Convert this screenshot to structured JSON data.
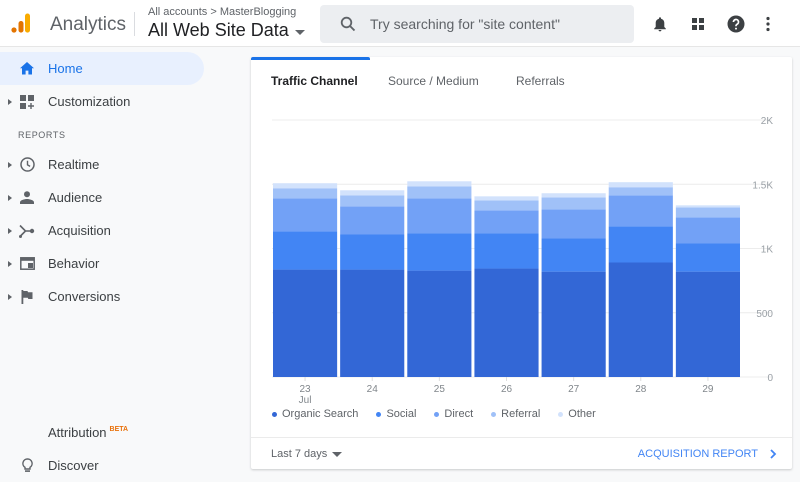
{
  "header": {
    "app_name": "Analytics",
    "breadcrumb": "All accounts > MasterBlogging",
    "property": "All Web Site Data",
    "search_placeholder": "Try searching for \"site content\""
  },
  "sidebar": {
    "home": "Home",
    "customization": "Customization",
    "reports_label": "REPORTS",
    "realtime": "Realtime",
    "audience": "Audience",
    "acquisition": "Acquisition",
    "behavior": "Behavior",
    "conversions": "Conversions",
    "attribution": "Attribution",
    "attribution_badge": "BETA",
    "discover": "Discover"
  },
  "card": {
    "tabs": [
      "Traffic Channel",
      "Source / Medium",
      "Referrals"
    ],
    "date_range": "Last 7 days",
    "report_link": "ACQUISITION REPORT"
  },
  "colors": {
    "accent": "#1a73e8",
    "organic": "#3367d6",
    "social": "#4285f4",
    "direct": "#72a1f6",
    "referral": "#a0c1f8",
    "other": "#d2e2fc",
    "logo_dark": "#e37400",
    "logo_light": "#f9ab00"
  },
  "chart_data": {
    "type": "bar",
    "stacked": true,
    "title": "Traffic Channel",
    "xlabel": "",
    "ylabel": "",
    "categories": [
      "23",
      "24",
      "25",
      "26",
      "27",
      "28",
      "29"
    ],
    "x_sub_label": "Jul",
    "y_ticks": [
      "0",
      "500",
      "1K",
      "1.5K",
      "2K"
    ],
    "ylim": [
      0,
      2000
    ],
    "grid": true,
    "legend_position": "bottom",
    "series": [
      {
        "name": "Organic Search",
        "values": [
          836,
          836,
          828,
          844,
          820,
          891,
          820
        ]
      },
      {
        "name": "Social",
        "values": [
          297,
          273,
          289,
          273,
          258,
          281,
          219
        ]
      },
      {
        "name": "Direct",
        "values": [
          258,
          219,
          274,
          180,
          227,
          242,
          203
        ]
      },
      {
        "name": "Referral",
        "values": [
          78,
          86,
          93,
          78,
          93,
          63,
          78
        ]
      },
      {
        "name": "Other",
        "values": [
          39,
          39,
          39,
          31,
          32,
          39,
          16
        ]
      }
    ]
  }
}
